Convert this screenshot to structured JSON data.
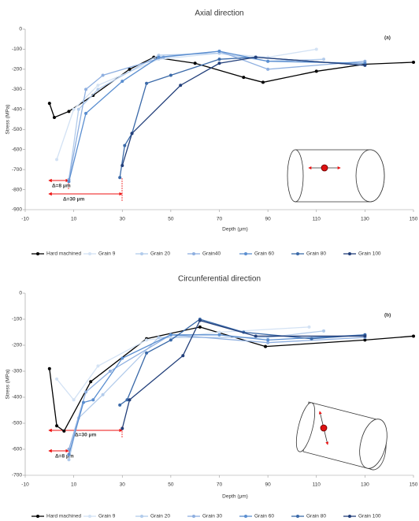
{
  "chart_data": [
    {
      "type": "line",
      "title": "Axial direction",
      "x_label": "Depth (μm)",
      "y_label": "Stress (MPa)",
      "xlim": [
        -10,
        150
      ],
      "xticks": [
        -10,
        10,
        30,
        50,
        70,
        90,
        110,
        130,
        150
      ],
      "ylim": [
        -900,
        0
      ],
      "yticks": [
        0,
        -100,
        -200,
        -300,
        -400,
        -500,
        -600,
        -700,
        -800,
        -900
      ],
      "annotations": [
        "(a)",
        "Δ=8 μm",
        "Δ=30 μm"
      ],
      "series": [
        {
          "name": "Hard machined",
          "color": "#000000",
          "x": [
            0,
            2,
            8,
            18,
            33,
            43,
            60,
            80,
            88,
            110,
            130,
            150
          ],
          "values": [
            -370,
            -440,
            -410,
            -330,
            -200,
            -140,
            -170,
            -240,
            -265,
            -210,
            -175,
            -165
          ]
        },
        {
          "name": "Grain 9",
          "color": "#d3e2f4",
          "x": [
            3,
            10,
            20,
            45,
            70,
            90,
            110
          ],
          "values": [
            -650,
            -400,
            -280,
            -150,
            -120,
            -140,
            -100
          ]
        },
        {
          "name": "Grain 20",
          "color": "#b2cbeb",
          "x": [
            8,
            12,
            20,
            45,
            70,
            90,
            113
          ],
          "values": [
            -750,
            -400,
            -300,
            -130,
            -120,
            -160,
            -150
          ]
        },
        {
          "name": "Grain40",
          "color": "#8eafe0",
          "x": [
            8,
            15,
            22,
            47,
            70,
            90,
            130
          ],
          "values": [
            -750,
            -300,
            -230,
            -140,
            -110,
            -200,
            -160
          ]
        },
        {
          "name": "Grain 60",
          "color": "#5a8ed0",
          "x": [
            8,
            15,
            30,
            45,
            70,
            90,
            130
          ],
          "values": [
            -760,
            -420,
            -260,
            -140,
            -110,
            -160,
            -170
          ]
        },
        {
          "name": "Grain 80",
          "color": "#3a69a8",
          "x": [
            29,
            31,
            34,
            40,
            50,
            70,
            85,
            130
          ],
          "values": [
            -740,
            -580,
            -520,
            -270,
            -230,
            -150,
            -140,
            -180
          ]
        },
        {
          "name": "Grain 100",
          "color": "#223f7a",
          "x": [
            30,
            34,
            54,
            70,
            85,
            130
          ],
          "values": [
            -680,
            -520,
            -280,
            -170,
            -140,
            -180
          ]
        }
      ]
    },
    {
      "type": "line",
      "title": "Circunferential direction",
      "x_label": "Depth (μm)",
      "y_label": "Stress (MPa)",
      "xlim": [
        -10,
        150
      ],
      "xticks": [
        -10,
        10,
        30,
        50,
        70,
        90,
        110,
        130,
        150
      ],
      "ylim": [
        -700,
        0
      ],
      "yticks": [
        0,
        -100,
        -200,
        -300,
        -400,
        -500,
        -600,
        -700
      ],
      "annotations": [
        "(b)",
        "Δ=30 μm",
        "Δ=8 μm"
      ],
      "series": [
        {
          "name": "Hard machined",
          "color": "#000000",
          "x": [
            0,
            3,
            6,
            17,
            40,
            62,
            89,
            130,
            150
          ],
          "values": [
            -290,
            -510,
            -530,
            -340,
            -175,
            -130,
            -205,
            -180,
            -165
          ]
        },
        {
          "name": "Grain 9",
          "color": "#d3e2f4",
          "x": [
            3,
            10,
            20,
            40,
            70,
            107
          ],
          "values": [
            -330,
            -410,
            -280,
            -180,
            -150,
            -130
          ]
        },
        {
          "name": "Grain 20",
          "color": "#b2cbeb",
          "x": [
            8,
            12,
            22,
            45,
            90,
            113
          ],
          "values": [
            -640,
            -480,
            -390,
            -170,
            -170,
            -145
          ]
        },
        {
          "name": "Grain 30",
          "color": "#8eafe0",
          "x": [
            8,
            15,
            25,
            50,
            90,
            130
          ],
          "values": [
            -600,
            -380,
            -300,
            -160,
            -190,
            -170
          ]
        },
        {
          "name": "Grain 60",
          "color": "#5a8ed0",
          "x": [
            8,
            14,
            18,
            30,
            50,
            70,
            90,
            130
          ],
          "values": [
            -620,
            -420,
            -410,
            -250,
            -160,
            -160,
            -180,
            -160
          ]
        },
        {
          "name": "Grain 80",
          "color": "#3a69a8",
          "x": [
            29,
            32,
            40,
            50,
            62,
            80,
            108,
            130
          ],
          "values": [
            -430,
            -410,
            -230,
            -180,
            -100,
            -150,
            -175,
            -160
          ]
        },
        {
          "name": "Grain 100",
          "color": "#223f7a",
          "x": [
            30,
            33,
            55,
            62,
            85,
            130
          ],
          "values": [
            -520,
            -410,
            -240,
            -105,
            -165,
            -165
          ]
        }
      ]
    }
  ]
}
